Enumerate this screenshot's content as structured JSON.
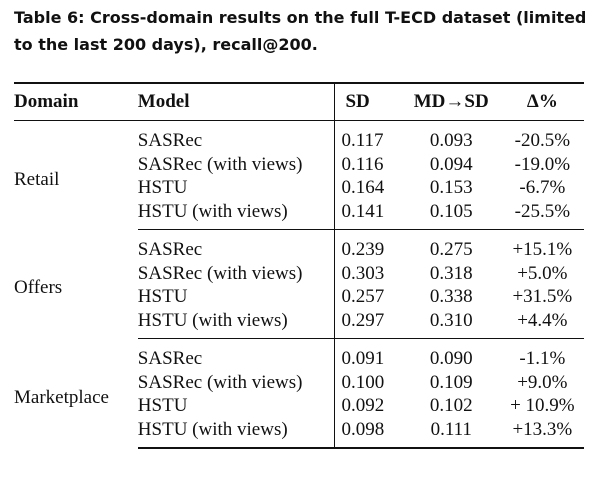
{
  "caption": "Table 6: Cross-domain results on the full T-ECD dataset (limited to the last 200 days), recall@200.",
  "columns": {
    "domain": "Domain",
    "model": "Model",
    "sd": "SD",
    "md_sd": "MD→SD",
    "delta": "Δ%"
  },
  "groups": [
    {
      "domain": "Retail",
      "rows": [
        {
          "model": "SASRec",
          "sd": "0.117",
          "md_sd": "0.093",
          "delta": "-20.5%"
        },
        {
          "model": "SASRec (with views)",
          "sd": "0.116",
          "md_sd": "0.094",
          "delta": "-19.0%"
        },
        {
          "model": "HSTU",
          "sd": "0.164",
          "md_sd": "0.153",
          "delta": "-6.7%"
        },
        {
          "model": "HSTU (with views)",
          "sd": "0.141",
          "md_sd": "0.105",
          "delta": "-25.5%"
        }
      ]
    },
    {
      "domain": "Offers",
      "rows": [
        {
          "model": "SASRec",
          "sd": "0.239",
          "md_sd": "0.275",
          "delta": "+15.1%"
        },
        {
          "model": "SASRec (with views)",
          "sd": "0.303",
          "md_sd": "0.318",
          "delta": "+5.0%"
        },
        {
          "model": "HSTU",
          "sd": "0.257",
          "md_sd": "0.338",
          "delta": "+31.5%"
        },
        {
          "model": "HSTU (with views)",
          "sd": "0.297",
          "md_sd": "0.310",
          "delta": "+4.4%"
        }
      ]
    },
    {
      "domain": "Marketplace",
      "rows": [
        {
          "model": "SASRec",
          "sd": "0.091",
          "md_sd": "0.090",
          "delta": "-1.1%"
        },
        {
          "model": "SASRec (with views)",
          "sd": "0.100",
          "md_sd": "0.109",
          "delta": "+9.0%"
        },
        {
          "model": "HSTU",
          "sd": "0.092",
          "md_sd": "0.102",
          "delta": "+ 10.9%"
        },
        {
          "model": "HSTU (with views)",
          "sd": "0.098",
          "md_sd": "0.111",
          "delta": "+13.3%"
        }
      ]
    }
  ]
}
